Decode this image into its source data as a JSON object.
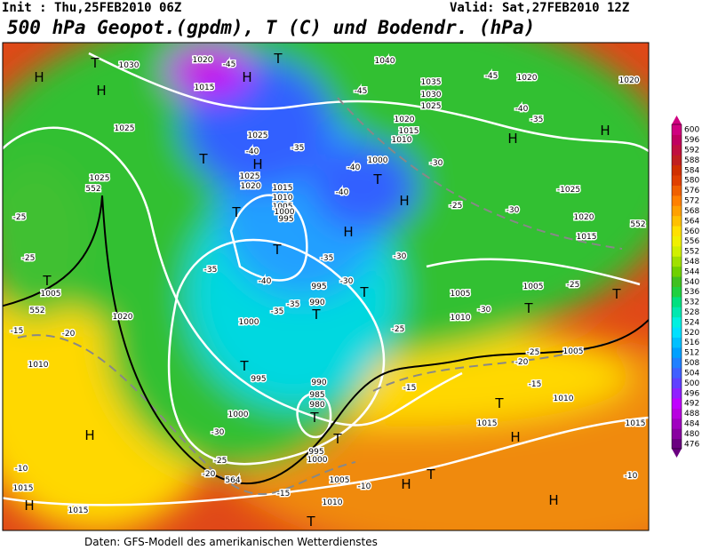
{
  "header": {
    "init": "Init : Thu,25FEB2010 06Z",
    "valid": "Valid: Sat,27FEB2010 12Z",
    "title": "500 hPa Geopot.(gpdm), T (C) und Bodendr. (hPa)"
  },
  "footer": "Daten: GFS-Modell des amerikanischen Wetterdienstes",
  "colorbar": {
    "levels": [
      476,
      480,
      484,
      488,
      492,
      496,
      500,
      504,
      508,
      512,
      516,
      520,
      524,
      528,
      532,
      536,
      540,
      544,
      548,
      552,
      556,
      560,
      564,
      568,
      572,
      576,
      580,
      584,
      588,
      592,
      596,
      600
    ],
    "colors": [
      "#6a0080",
      "#8800a0",
      "#a000c0",
      "#b800e0",
      "#c000ff",
      "#9020ff",
      "#6040ff",
      "#4060ff",
      "#2080ff",
      "#00a0ff",
      "#00c0ff",
      "#00e0ff",
      "#00f0e0",
      "#00e8b0",
      "#00e080",
      "#20d040",
      "#40c020",
      "#70d000",
      "#a0e000",
      "#d0f000",
      "#f0f000",
      "#ffe000",
      "#ffc000",
      "#ffa000",
      "#ff8000",
      "#f06000",
      "#e04000",
      "#d03000",
      "#c02020",
      "#c01040",
      "#c00060",
      "#d00080"
    ]
  },
  "map_labels": [
    "T",
    "H",
    "H",
    "1030",
    "1020",
    "-45",
    "1015",
    "H",
    "T",
    "1040",
    "-45",
    "1035",
    "1030",
    "1025",
    "-45",
    "1020",
    "1020",
    "-40",
    "-35",
    "1025",
    "1025",
    "-40",
    "H",
    "T",
    "-35",
    "1020",
    "1015",
    "1010",
    "1000",
    "T",
    "-40",
    "-30",
    "H",
    "H",
    "-1025",
    "1025",
    "1025",
    "1020",
    "1015",
    "1010",
    "1005",
    "1000",
    "995",
    "T",
    "T",
    "-40",
    "H",
    "-25",
    "-30",
    "1020",
    "1015",
    "H",
    "-35",
    "-30",
    "-40",
    "-35",
    "995",
    "990",
    "T",
    "-35",
    "-35",
    "-30",
    "T",
    "1005",
    "1010",
    "-30",
    "1005",
    "-25",
    "T",
    "T",
    "-25",
    "-25",
    "T",
    "1005",
    "1020",
    "-15",
    "-20",
    "1010",
    "1000",
    "-25",
    "T",
    "995",
    "990",
    "985",
    "980",
    "T",
    "-15",
    "-20",
    "-25",
    "1005",
    "-15",
    "1010",
    "H",
    "1000",
    "-30",
    "995",
    "1000",
    "T",
    "T",
    "1015",
    "H",
    "-25",
    "-20",
    "1015",
    "-10",
    "1015",
    "H",
    "1005",
    "-10",
    "H",
    "T",
    "-15",
    "1010",
    "1015",
    "H",
    "-10",
    "T",
    "552",
    "552",
    "552",
    "564"
  ]
}
